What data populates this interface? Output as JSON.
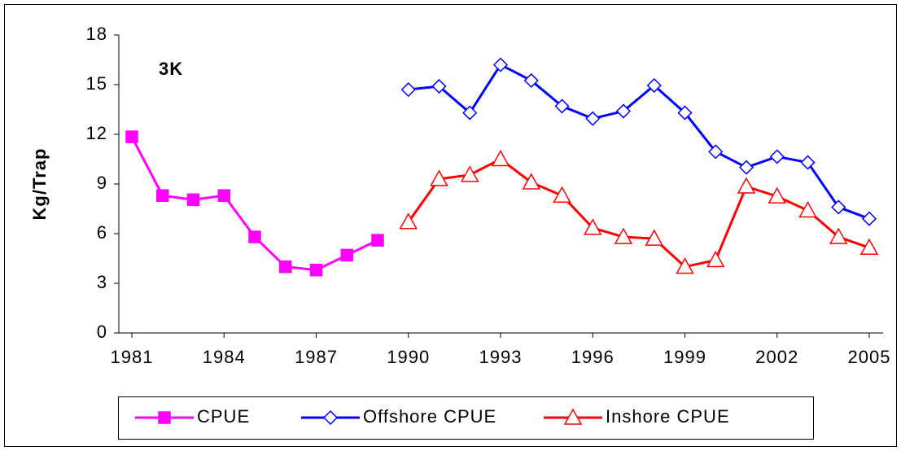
{
  "chart_data": {
    "type": "line",
    "annotation": "3K",
    "y_label": "Kg/Trap",
    "xlim": [
      1981,
      2005
    ],
    "xticks": [
      1981,
      1984,
      1987,
      1990,
      1993,
      1996,
      1999,
      2002,
      2005
    ],
    "ylim": [
      0,
      18
    ],
    "yticks": [
      0,
      3,
      6,
      9,
      12,
      15,
      18
    ],
    "series": [
      {
        "name": "CPUE",
        "color": "#ff00ff",
        "marker": "square",
        "x": [
          1981,
          1982,
          1983,
          1984,
          1985,
          1986,
          1987,
          1988,
          1989
        ],
        "values": [
          11.85,
          8.3,
          8.05,
          8.3,
          5.8,
          4.0,
          3.8,
          4.7,
          5.6
        ]
      },
      {
        "name": "Offshore CPUE",
        "color": "#0000ff",
        "marker": "diamond",
        "x": [
          1990,
          1991,
          1992,
          1993,
          1994,
          1995,
          1996,
          1997,
          1998,
          1999,
          2000,
          2001,
          2002,
          2003,
          2004,
          2005
        ],
        "values": [
          14.7,
          14.9,
          13.3,
          16.2,
          15.25,
          13.7,
          12.95,
          13.4,
          14.95,
          13.3,
          10.95,
          10.0,
          10.65,
          10.3,
          7.6,
          6.9
        ]
      },
      {
        "name": "Inshore CPUE",
        "color": "#ff0000",
        "marker": "triangle",
        "x": [
          1990,
          1991,
          1992,
          1993,
          1994,
          1995,
          1996,
          1997,
          1998,
          1999,
          2000,
          2001,
          2002,
          2003,
          2004,
          2005
        ],
        "values": [
          6.7,
          9.3,
          9.55,
          10.5,
          9.1,
          8.3,
          6.35,
          5.8,
          5.7,
          4.0,
          4.4,
          8.85,
          8.25,
          7.4,
          5.8,
          5.15
        ]
      }
    ]
  }
}
